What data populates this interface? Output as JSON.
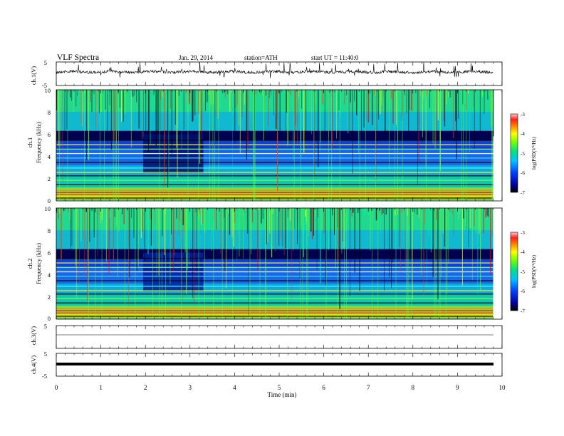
{
  "header": {
    "title": "VLF  Spectra",
    "date": "Jan. 29, 2014",
    "station": "station=ATH",
    "start": "start  UT =   11:40:0"
  },
  "chart_data": [
    {
      "type": "line",
      "panel": "ch1-waveform",
      "ylabel": "ch.1(V)",
      "ylim": [
        -5,
        5
      ],
      "y_ticks": [
        "5",
        "-5"
      ],
      "xlim": [
        0,
        10
      ]
    },
    {
      "type": "heatmap",
      "panel": "ch1-spectrogram",
      "ylabel_line1": "ch.1",
      "ylabel_line2": "Frequency (kHz)",
      "ylim": [
        0,
        10
      ],
      "y_ticks": [
        "0",
        "2",
        "4",
        "6",
        "8",
        "10"
      ],
      "xlim": [
        0,
        10
      ],
      "data_end_min": 9.8,
      "colorbar": {
        "label": "log(PSD(V²/Hz)",
        "range": [
          -7,
          -3
        ],
        "ticks": [
          "-3",
          "-4",
          "-5",
          "-6",
          "-7"
        ]
      }
    },
    {
      "type": "heatmap",
      "panel": "ch2-spectrogram",
      "ylabel_line1": "ch.2",
      "ylabel_line2": "Frequency (kHz)",
      "ylim": [
        0,
        10
      ],
      "y_ticks": [
        "0",
        "2",
        "4",
        "6",
        "8",
        "10"
      ],
      "xlim": [
        0,
        10
      ],
      "data_end_min": 9.8,
      "colorbar": {
        "label": "log(PSD(V²/Hz)",
        "range": [
          -7,
          -3
        ],
        "ticks": [
          "-3",
          "-4",
          "-5",
          "-6",
          "-7"
        ]
      }
    },
    {
      "type": "line",
      "panel": "ch3-waveform",
      "ylabel": "ch.3(V)",
      "ylim": [
        -5,
        5
      ],
      "y_ticks": [
        "5"
      ],
      "xlim": [
        0,
        10
      ]
    },
    {
      "type": "line",
      "panel": "ch4-waveform",
      "ylabel": "ch.4(V)",
      "ylim": [
        -5,
        5
      ],
      "y_ticks": [
        "5",
        "-5"
      ],
      "xlim": [
        0,
        10
      ]
    }
  ],
  "x_axis": {
    "label": "Time  (min)",
    "ticks": [
      "0",
      "1",
      "2",
      "3",
      "4",
      "5",
      "6",
      "7",
      "8",
      "9",
      "10"
    ]
  }
}
